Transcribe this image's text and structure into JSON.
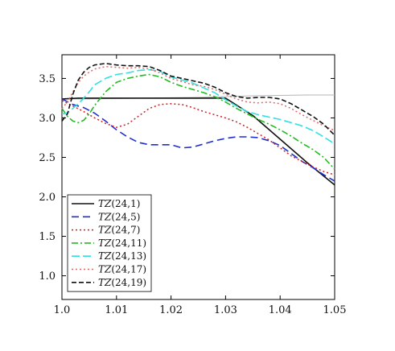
{
  "chart_data": {
    "type": "line",
    "xlim": [
      1.0,
      1.05
    ],
    "ylim": [
      0.7,
      3.8
    ],
    "x_ticks": [
      "1.0",
      "1.01",
      "1.02",
      "1.03",
      "1.04",
      "1.05"
    ],
    "y_ticks": [
      "1.0",
      "1.5",
      "2.0",
      "2.5",
      "3.0",
      "3.5"
    ],
    "x_tick_values": [
      1.0,
      1.01,
      1.02,
      1.03,
      1.04,
      1.05
    ],
    "y_tick_values": [
      1.0,
      1.5,
      2.0,
      2.5,
      3.0,
      3.5
    ],
    "grid": false,
    "legend_position": "bottom-left",
    "reference": {
      "color": "#b5b5b5",
      "x": [
        1.0,
        1.005,
        1.01,
        1.015,
        1.02,
        1.025,
        1.03,
        1.035,
        1.04,
        1.045,
        1.05
      ],
      "y": [
        3.24,
        3.24,
        3.245,
        3.25,
        3.255,
        3.26,
        3.27,
        3.28,
        3.285,
        3.29,
        3.29
      ]
    },
    "series": [
      {
        "name": "TZ(24,1)",
        "base": "TZ",
        "args": "(24,1)",
        "color": "#111111",
        "dash": "",
        "width": 1.6,
        "x": [
          1.0,
          1.003,
          1.005,
          1.01,
          1.015,
          1.02,
          1.025,
          1.03,
          1.035,
          1.04,
          1.045,
          1.05
        ],
        "y": [
          3.24,
          3.25,
          3.25,
          3.25,
          3.25,
          3.25,
          3.25,
          3.25,
          3.03,
          2.73,
          2.43,
          2.15
        ]
      },
      {
        "name": "TZ(24,5)",
        "base": "TZ",
        "args": "(24,5)",
        "color": "#1f2fd0",
        "dash": "9,5",
        "width": 1.6,
        "x": [
          1.0,
          1.002,
          1.004,
          1.006,
          1.008,
          1.01,
          1.012,
          1.014,
          1.016,
          1.018,
          1.02,
          1.022,
          1.024,
          1.026,
          1.028,
          1.03,
          1.032,
          1.034,
          1.036,
          1.038,
          1.04,
          1.042,
          1.044,
          1.046,
          1.048,
          1.05
        ],
        "y": [
          3.24,
          3.17,
          3.13,
          3.06,
          2.96,
          2.85,
          2.76,
          2.69,
          2.66,
          2.66,
          2.66,
          2.62,
          2.63,
          2.67,
          2.71,
          2.74,
          2.76,
          2.76,
          2.75,
          2.71,
          2.65,
          2.55,
          2.45,
          2.37,
          2.28,
          2.2
        ]
      },
      {
        "name": "TZ(24,7)",
        "base": "TZ",
        "args": "(24,7)",
        "color": "#d21e1e",
        "dash": "2,3",
        "width": 1.5,
        "x": [
          1.0,
          1.002,
          1.004,
          1.006,
          1.008,
          1.01,
          1.012,
          1.014,
          1.016,
          1.018,
          1.02,
          1.022,
          1.024,
          1.026,
          1.028,
          1.03,
          1.032,
          1.034,
          1.036,
          1.038,
          1.04,
          1.042,
          1.044,
          1.046,
          1.048,
          1.05
        ],
        "y": [
          3.22,
          3.15,
          3.08,
          3.0,
          2.93,
          2.88,
          2.92,
          3.02,
          3.12,
          3.17,
          3.18,
          3.17,
          3.13,
          3.08,
          3.04,
          3.0,
          2.95,
          2.88,
          2.8,
          2.72,
          2.62,
          2.52,
          2.45,
          2.38,
          2.32,
          2.28
        ]
      },
      {
        "name": "TZ(24,11)",
        "base": "TZ",
        "args": "(24,11)",
        "color": "#22bb22",
        "dash": "8,3,2,3",
        "width": 1.6,
        "x": [
          1.0,
          1.001,
          1.002,
          1.003,
          1.004,
          1.005,
          1.006,
          1.008,
          1.01,
          1.012,
          1.014,
          1.016,
          1.018,
          1.02,
          1.022,
          1.024,
          1.026,
          1.028,
          1.03,
          1.032,
          1.034,
          1.036,
          1.038,
          1.04,
          1.042,
          1.044,
          1.046,
          1.048,
          1.05
        ],
        "y": [
          3.12,
          3.02,
          2.96,
          2.94,
          2.97,
          3.05,
          3.16,
          3.33,
          3.45,
          3.5,
          3.53,
          3.55,
          3.52,
          3.45,
          3.4,
          3.36,
          3.32,
          3.27,
          3.2,
          3.12,
          3.05,
          2.98,
          2.92,
          2.85,
          2.77,
          2.68,
          2.6,
          2.5,
          2.35
        ]
      },
      {
        "name": "TZ(24,13)",
        "base": "TZ",
        "args": "(24,13)",
        "color": "#33e0e0",
        "dash": "10,4",
        "width": 1.6,
        "x": [
          1.0,
          1.001,
          1.002,
          1.003,
          1.004,
          1.005,
          1.006,
          1.008,
          1.01,
          1.012,
          1.014,
          1.016,
          1.018,
          1.02,
          1.022,
          1.024,
          1.026,
          1.028,
          1.03,
          1.032,
          1.034,
          1.036,
          1.038,
          1.04,
          1.042,
          1.044,
          1.046,
          1.048,
          1.05
        ],
        "y": [
          3.05,
          3.06,
          3.12,
          3.18,
          3.25,
          3.33,
          3.42,
          3.5,
          3.55,
          3.57,
          3.6,
          3.61,
          3.59,
          3.52,
          3.48,
          3.44,
          3.38,
          3.32,
          3.23,
          3.15,
          3.08,
          3.04,
          3.01,
          2.98,
          2.94,
          2.9,
          2.84,
          2.76,
          2.67
        ]
      },
      {
        "name": "TZ(24,17)",
        "base": "TZ",
        "args": "(24,17)",
        "color": "#d86a6a",
        "dash": "2,3",
        "width": 1.5,
        "x": [
          1.0,
          1.001,
          1.002,
          1.003,
          1.004,
          1.005,
          1.006,
          1.008,
          1.01,
          1.012,
          1.014,
          1.016,
          1.018,
          1.02,
          1.022,
          1.024,
          1.026,
          1.028,
          1.03,
          1.032,
          1.034,
          1.036,
          1.038,
          1.04,
          1.042,
          1.044,
          1.046,
          1.048,
          1.05
        ],
        "y": [
          3.12,
          3.2,
          3.33,
          3.45,
          3.53,
          3.58,
          3.62,
          3.65,
          3.64,
          3.63,
          3.64,
          3.62,
          3.57,
          3.5,
          3.46,
          3.42,
          3.4,
          3.36,
          3.3,
          3.24,
          3.2,
          3.19,
          3.2,
          3.18,
          3.12,
          3.04,
          2.97,
          2.9,
          2.84
        ]
      },
      {
        "name": "TZ(24,19)",
        "base": "TZ",
        "args": "(24,19)",
        "color": "#111111",
        "dash": "6,3",
        "width": 1.6,
        "x": [
          1.0,
          1.001,
          1.002,
          1.003,
          1.004,
          1.005,
          1.006,
          1.008,
          1.01,
          1.012,
          1.014,
          1.016,
          1.018,
          1.02,
          1.022,
          1.024,
          1.026,
          1.028,
          1.03,
          1.032,
          1.034,
          1.036,
          1.038,
          1.04,
          1.042,
          1.044,
          1.046,
          1.048,
          1.05
        ],
        "y": [
          2.96,
          3.05,
          3.3,
          3.48,
          3.58,
          3.64,
          3.67,
          3.69,
          3.67,
          3.66,
          3.66,
          3.65,
          3.6,
          3.53,
          3.5,
          3.47,
          3.44,
          3.39,
          3.32,
          3.27,
          3.25,
          3.26,
          3.26,
          3.24,
          3.18,
          3.1,
          3.02,
          2.92,
          2.78
        ]
      }
    ]
  }
}
